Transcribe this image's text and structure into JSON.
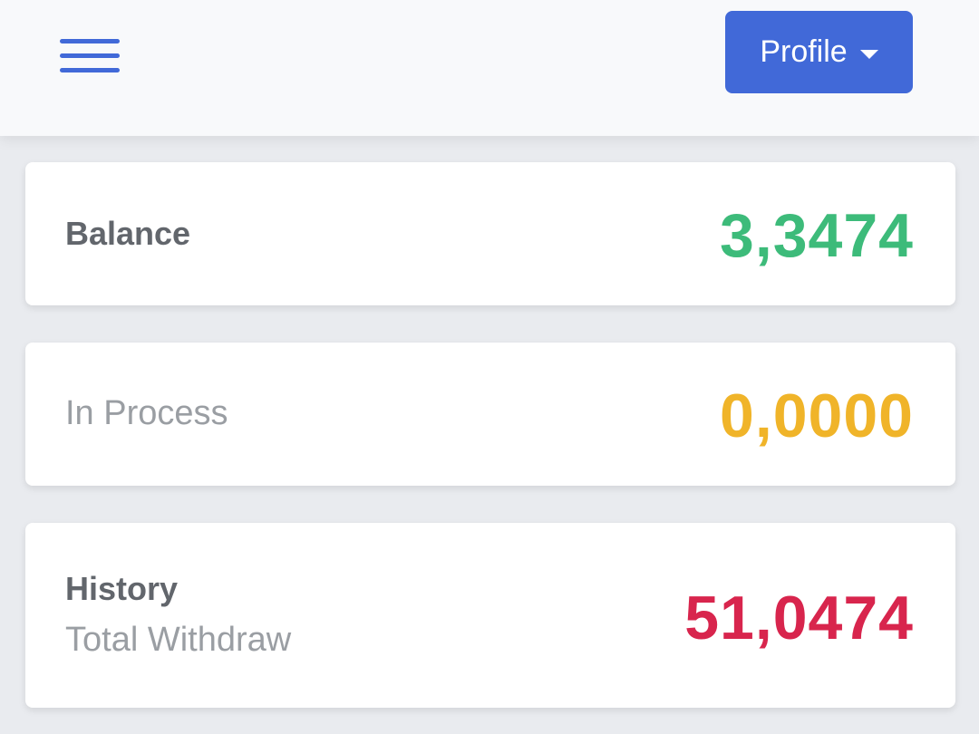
{
  "header": {
    "menu_icon": "hamburger-menu-icon",
    "profile_label": "Profile",
    "profile_caret_icon": "caret-down-icon"
  },
  "cards": {
    "balance": {
      "label": "Balance",
      "value": "3,3474"
    },
    "in_process": {
      "label": "In Process",
      "value": "0,0000"
    },
    "history": {
      "title": "History",
      "subtitle": "Total Withdraw",
      "value": "51,0474"
    }
  },
  "colors": {
    "accent": "#4169d8",
    "balance": "#3dbb7a",
    "in_process": "#f0b429",
    "history": "#d8254d"
  }
}
